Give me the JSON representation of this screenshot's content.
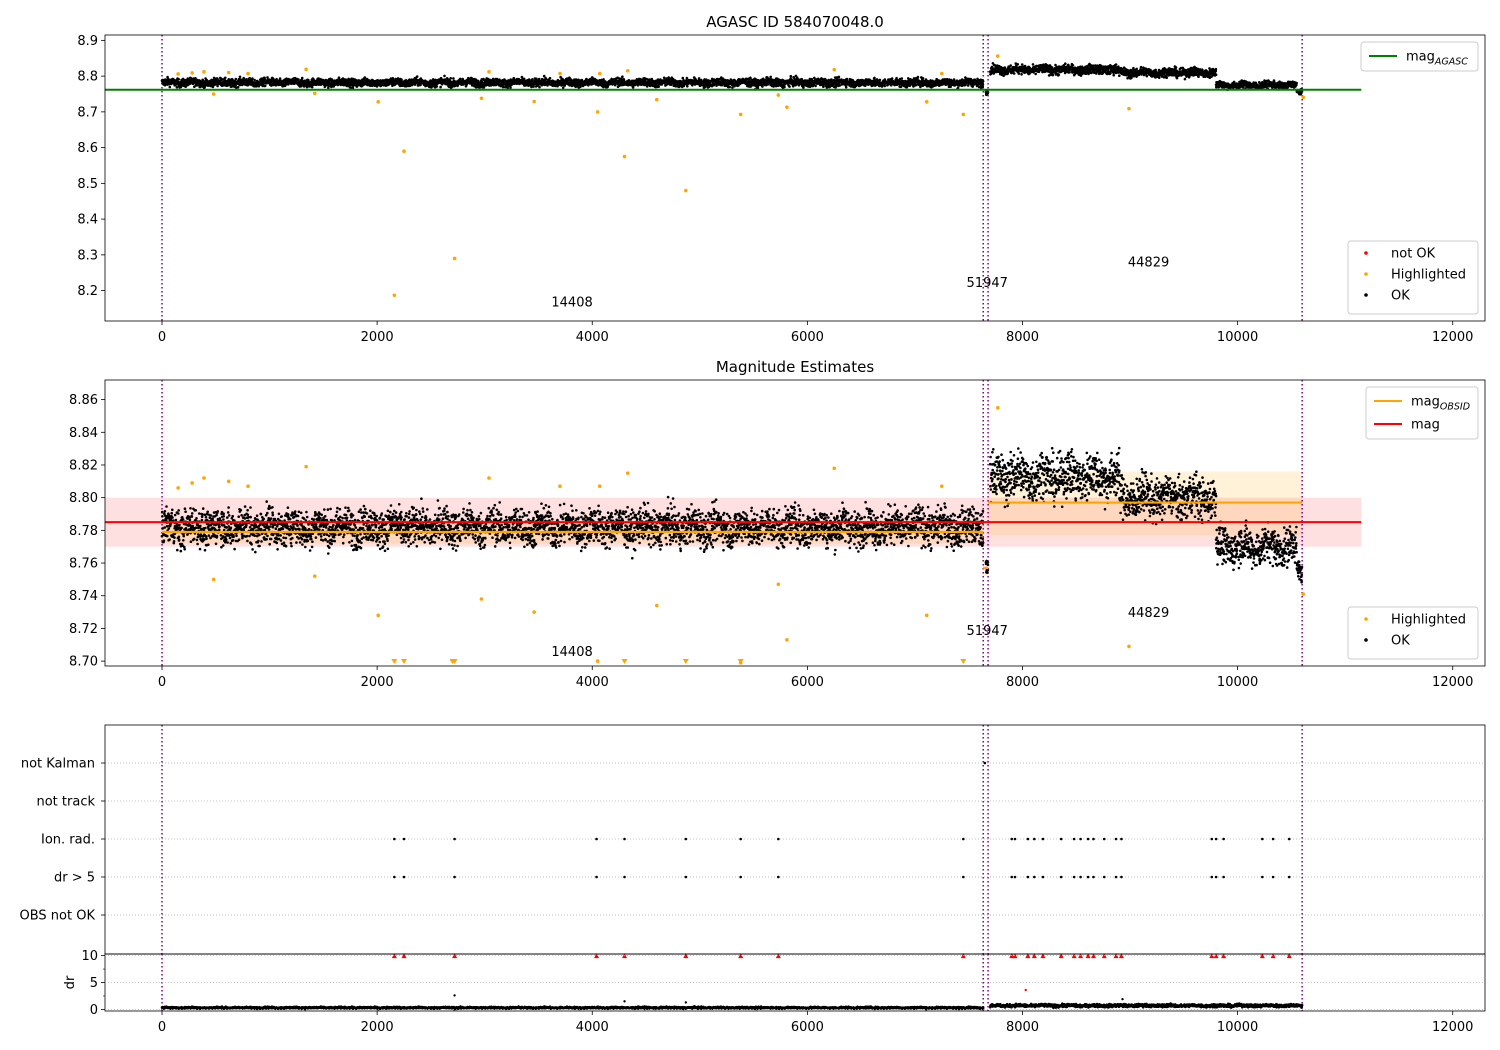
{
  "chart_data": [
    {
      "type": "scatter",
      "title": "AGASC ID 584070048.0",
      "xlabel": "",
      "ylabel": "",
      "xlim": [
        -530,
        12300
      ],
      "ylim": [
        8.115,
        8.915
      ],
      "xticks": [
        0,
        2000,
        4000,
        6000,
        8000,
        10000,
        12000
      ],
      "yticks": [
        8.2,
        8.3,
        8.4,
        8.5,
        8.6,
        8.7,
        8.8,
        8.9
      ],
      "ytick_decimals": 1,
      "grid": false,
      "vlines": [
        0,
        7635,
        7680,
        10600
      ],
      "hline": {
        "label": "mag_AGASC",
        "value": 8.762,
        "x_range": [
          -530,
          11150
        ],
        "color": "#008000"
      },
      "ok_series": [
        {
          "x": [
            0,
            7635
          ],
          "base": 8.782,
          "spread": 0.008
        },
        {
          "x": [
            7660,
            7680
          ],
          "base": 8.756,
          "spread": 0.005
        },
        {
          "x": [
            7700,
            8900
          ],
          "base": 8.818,
          "spread": 0.009
        },
        {
          "x": [
            8900,
            9800
          ],
          "base": 8.81,
          "spread": 0.009
        },
        {
          "x": [
            9800,
            10550
          ],
          "base": 8.775,
          "spread": 0.007
        },
        {
          "x": [
            10550,
            10600
          ],
          "base": 8.755,
          "spread": 0.005
        }
      ],
      "highlighted_points": [
        [
          150,
          8.806
        ],
        [
          280,
          8.809
        ],
        [
          390,
          8.812
        ],
        [
          480,
          8.75
        ],
        [
          620,
          8.81
        ],
        [
          800,
          8.807
        ],
        [
          1340,
          8.819
        ],
        [
          1420,
          8.752
        ],
        [
          2010,
          8.728
        ],
        [
          2160,
          8.187
        ],
        [
          2250,
          8.59
        ],
        [
          2720,
          8.29
        ],
        [
          2970,
          8.738
        ],
        [
          3040,
          8.812
        ],
        [
          3460,
          8.729
        ],
        [
          3700,
          8.807
        ],
        [
          4050,
          8.7
        ],
        [
          4070,
          8.807
        ],
        [
          4300,
          8.575
        ],
        [
          4330,
          8.815
        ],
        [
          4600,
          8.734
        ],
        [
          4870,
          8.48
        ],
        [
          5380,
          8.693
        ],
        [
          5730,
          8.747
        ],
        [
          5810,
          8.713
        ],
        [
          6250,
          8.818
        ],
        [
          7110,
          8.728
        ],
        [
          7250,
          8.807
        ],
        [
          7450,
          8.693
        ],
        [
          7770,
          8.856
        ],
        [
          8990,
          8.709
        ],
        [
          10610,
          8.741
        ]
      ],
      "annotations": [
        {
          "text": "14408",
          "x": 3620,
          "y": 8.155
        },
        {
          "text": "51947",
          "x": 7480,
          "y": 8.21
        },
        {
          "text": "44829",
          "x": 8980,
          "y": 8.268
        }
      ],
      "legend_upper": {
        "location": "upper right",
        "entries": [
          {
            "label": "mag",
            "sub": "AGASC",
            "color": "#008000"
          }
        ]
      },
      "legend_lower": {
        "location": "lower right",
        "entries": [
          {
            "label": "not OK",
            "color": "#ff0000"
          },
          {
            "label": "Highlighted",
            "color": "#ffa500"
          },
          {
            "label": "OK",
            "color": "#000000"
          }
        ]
      }
    },
    {
      "type": "scatter",
      "title": "Magnitude Estimates",
      "xlabel": "",
      "ylabel": "",
      "xlim": [
        -530,
        12300
      ],
      "ylim": [
        8.697,
        8.872
      ],
      "xticks": [
        0,
        2000,
        4000,
        6000,
        8000,
        10000,
        12000
      ],
      "yticks": [
        8.7,
        8.72,
        8.74,
        8.76,
        8.78,
        8.8,
        8.82,
        8.84,
        8.86
      ],
      "ytick_decimals": 2,
      "grid": false,
      "vlines": [
        0,
        7635,
        7680,
        10600
      ],
      "mag_line": {
        "label": "mag",
        "value": 8.785,
        "band": [
          8.77,
          8.8
        ],
        "x_range": [
          -530,
          11150
        ],
        "color": "#ff0000"
      },
      "mag_obsid_segments": [
        {
          "x": [
            0,
            7635
          ],
          "value": 8.779,
          "band": [
            8.772,
            8.786
          ]
        },
        {
          "x": [
            7635,
            7680
          ],
          "value": 8.757,
          "band": [
            8.752,
            8.762
          ]
        },
        {
          "x": [
            7680,
            9800
          ],
          "value": 8.797,
          "band": [
            8.777,
            8.816
          ]
        },
        {
          "x": [
            9800,
            10600
          ],
          "value": 8.797,
          "band": [
            8.777,
            8.816
          ]
        }
      ],
      "ok_series": [
        {
          "x": [
            0,
            7635
          ],
          "base": 8.782,
          "spread": 0.008
        },
        {
          "x": [
            7660,
            7680
          ],
          "base": 8.756,
          "spread": 0.005
        },
        {
          "x": [
            7700,
            8900
          ],
          "base": 8.813,
          "spread": 0.01
        },
        {
          "x": [
            8900,
            9800
          ],
          "base": 8.8,
          "spread": 0.009
        },
        {
          "x": [
            9800,
            10550
          ],
          "base": 8.77,
          "spread": 0.008
        },
        {
          "x": [
            10550,
            10600
          ],
          "base": 8.755,
          "spread": 0.005
        }
      ],
      "highlighted_points": [
        [
          150,
          8.806
        ],
        [
          280,
          8.809
        ],
        [
          390,
          8.812
        ],
        [
          480,
          8.75
        ],
        [
          620,
          8.81
        ],
        [
          800,
          8.807
        ],
        [
          1340,
          8.819
        ],
        [
          1420,
          8.752
        ],
        [
          2010,
          8.728
        ],
        [
          2970,
          8.738
        ],
        [
          3040,
          8.812
        ],
        [
          3460,
          8.73
        ],
        [
          3700,
          8.807
        ],
        [
          4050,
          8.7
        ],
        [
          4070,
          8.807
        ],
        [
          4330,
          8.815
        ],
        [
          4600,
          8.734
        ],
        [
          5380,
          8.699
        ],
        [
          5730,
          8.747
        ],
        [
          5810,
          8.713
        ],
        [
          6250,
          8.818
        ],
        [
          7110,
          8.728
        ],
        [
          7250,
          8.807
        ],
        [
          7770,
          8.855
        ],
        [
          8990,
          8.709
        ],
        [
          10610,
          8.741
        ]
      ],
      "clipped_markers_x": [
        2160,
        2250,
        2700,
        2720,
        4300,
        4870,
        5380,
        7450
      ],
      "annotations": [
        {
          "text": "14408",
          "x": 3620,
          "y": 8.703
        },
        {
          "text": "51947",
          "x": 7480,
          "y": 8.716
        },
        {
          "text": "44829",
          "x": 8980,
          "y": 8.727
        }
      ],
      "legend_upper": {
        "location": "upper right",
        "entries": [
          {
            "label": "mag",
            "sub": "OBSID",
            "color": "#ffa500"
          },
          {
            "label": "mag",
            "sub": "",
            "color": "#ff0000"
          }
        ]
      },
      "legend_lower": {
        "location": "lower right",
        "entries": [
          {
            "label": "Highlighted",
            "color": "#ffa500"
          },
          {
            "label": "OK",
            "color": "#000000"
          }
        ]
      }
    },
    {
      "type": "scatter",
      "title": "",
      "xlabel": "",
      "ylabel": "",
      "xlim": [
        -530,
        12300
      ],
      "xticks": [],
      "vlines": [
        0,
        7635,
        7680,
        10600
      ],
      "categories": [
        "not Kalman",
        "not track",
        "Ion. rad.",
        "dr > 5",
        "OBS not OK"
      ],
      "grid": true,
      "flag_points": {
        "not Kalman": [
          7650
        ],
        "Ion. rad.": [
          2160,
          2250,
          2720,
          4040,
          4300,
          4870,
          5380,
          5730,
          7450,
          7900,
          7930,
          8050,
          8110,
          8190,
          8360,
          8480,
          8540,
          8610,
          8660,
          8760,
          8870,
          8920,
          9760,
          9800,
          9870,
          10230,
          10330,
          10480
        ],
        "dr > 5": [
          2160,
          2250,
          2720,
          4040,
          4300,
          4870,
          5380,
          5730,
          7450,
          7900,
          7930,
          8050,
          8110,
          8190,
          8360,
          8480,
          8540,
          8610,
          8660,
          8760,
          8870,
          8920,
          9760,
          9800,
          9870,
          10230,
          10330,
          10480
        ]
      }
    },
    {
      "type": "scatter",
      "title": "",
      "xlabel": "",
      "ylabel": "dr",
      "xlim": [
        -530,
        12300
      ],
      "ylim": [
        -0.3,
        10.3
      ],
      "xticks": [
        0,
        2000,
        4000,
        6000,
        8000,
        10000,
        12000
      ],
      "yticks": [
        0,
        5,
        10
      ],
      "ytick_decimals": 0,
      "grid": true,
      "vlines": [
        0,
        7635,
        7680,
        10600
      ],
      "ok_series": [
        {
          "x": [
            0,
            7635
          ],
          "base": 0.3,
          "spread": 0.12
        },
        {
          "x": [
            7700,
            10600
          ],
          "base": 0.7,
          "spread": 0.2
        }
      ],
      "outlier_points": [
        [
          2720,
          2.6
        ],
        [
          4300,
          1.5
        ],
        [
          4870,
          1.3
        ],
        [
          8030,
          3.6
        ],
        [
          8930,
          1.9
        ]
      ],
      "clipped_markers_x": [
        2160,
        2250,
        2720,
        4040,
        4300,
        4870,
        5380,
        5730,
        7450,
        7900,
        7930,
        8050,
        8110,
        8190,
        8360,
        8480,
        8540,
        8610,
        8660,
        8760,
        8870,
        8920,
        9760,
        9800,
        9870,
        10230,
        10330,
        10480
      ]
    }
  ]
}
